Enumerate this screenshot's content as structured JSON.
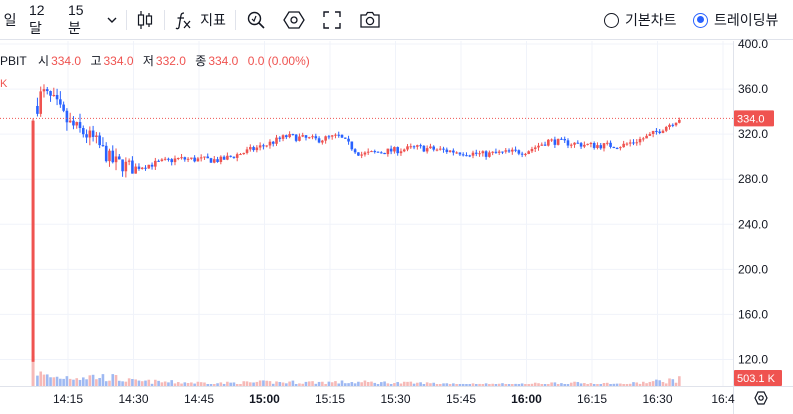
{
  "toolbar": {
    "range_1": "일",
    "range_2": "12달",
    "interval": "15분",
    "indicators_label": "지표",
    "chart_modes": [
      {
        "label": "기본차트",
        "selected": false
      },
      {
        "label": "트레이딩뷰",
        "selected": true
      }
    ],
    "icons": [
      "chevron-down-icon",
      "candle-type-icon",
      "fx-indicator-icon",
      "zoom-icon",
      "hexagon-settings-icon",
      "fullscreen-icon",
      "camera-icon"
    ]
  },
  "legend": {
    "symbol": "PBIT",
    "open_label": "시",
    "open_value": "334.0",
    "high_label": "고",
    "high_value": "334.0",
    "low_label": "저",
    "low_value": "332.0",
    "close_label": "종",
    "close_value": "334.0",
    "change": "0.0 (0.00%)",
    "flag": "K"
  },
  "colors": {
    "up": "#ef5350",
    "down": "#2962ff",
    "vol_up": "#f6b9b7",
    "vol_down": "#9fb9f2",
    "grid": "#f0f3fa",
    "last_price_line": "#ef5350"
  },
  "chart_data": {
    "type": "candlestick",
    "interval": "1m",
    "x_tick_labels": [
      "14:15",
      "14:30",
      "14:45",
      "15:00",
      "15:15",
      "15:30",
      "15:45",
      "16:00",
      "16:15",
      "16:30",
      "16:4"
    ],
    "bold_ticks": [
      "15:00",
      "16:00"
    ],
    "y_ticks": [
      120.0,
      160.0,
      200.0,
      240.0,
      280.0,
      320.0,
      360.0,
      400.0
    ],
    "y_tick_labels": [
      "120.0",
      "160.0",
      "200.0",
      "240.0",
      "280.0",
      "320.0",
      "360.0",
      "400.0"
    ],
    "ylim": [
      110,
      402
    ],
    "last_price": 334.0,
    "last_price_label": "334.0",
    "volume_label": "503.1 K",
    "spike_candle": {
      "time": "14:07",
      "open": 118,
      "close": 332,
      "high": 334,
      "low": 118
    },
    "anchors": [
      {
        "t": "14:08",
        "price": 345,
        "vol": 0.8
      },
      {
        "t": "14:09",
        "price": 358,
        "vol": 0.55
      },
      {
        "t": "14:12",
        "price": 348,
        "vol": 0.45
      },
      {
        "t": "14:15",
        "price": 330,
        "vol": 0.5
      },
      {
        "t": "14:21",
        "price": 315,
        "vol": 0.5
      },
      {
        "t": "14:25",
        "price": 296,
        "vol": 0.45
      },
      {
        "t": "14:30",
        "price": 290,
        "vol": 0.25
      },
      {
        "t": "14:40",
        "price": 298,
        "vol": 0.2
      },
      {
        "t": "14:50",
        "price": 297,
        "vol": 0.15
      },
      {
        "t": "15:00",
        "price": 310,
        "vol": 0.2
      },
      {
        "t": "15:05",
        "price": 318,
        "vol": 0.2
      },
      {
        "t": "15:12",
        "price": 315,
        "vol": 0.2
      },
      {
        "t": "15:17",
        "price": 318,
        "vol": 0.2
      },
      {
        "t": "15:22",
        "price": 302,
        "vol": 0.2
      },
      {
        "t": "15:35",
        "price": 308,
        "vol": 0.15
      },
      {
        "t": "15:50",
        "price": 302,
        "vol": 0.1
      },
      {
        "t": "16:00",
        "price": 305,
        "vol": 0.1
      },
      {
        "t": "16:05",
        "price": 314,
        "vol": 0.15
      },
      {
        "t": "16:15",
        "price": 310,
        "vol": 0.15
      },
      {
        "t": "16:22",
        "price": 310,
        "vol": 0.1
      },
      {
        "t": "16:28",
        "price": 318,
        "vol": 0.2
      },
      {
        "t": "16:35",
        "price": 334,
        "vol": 0.35
      }
    ]
  }
}
